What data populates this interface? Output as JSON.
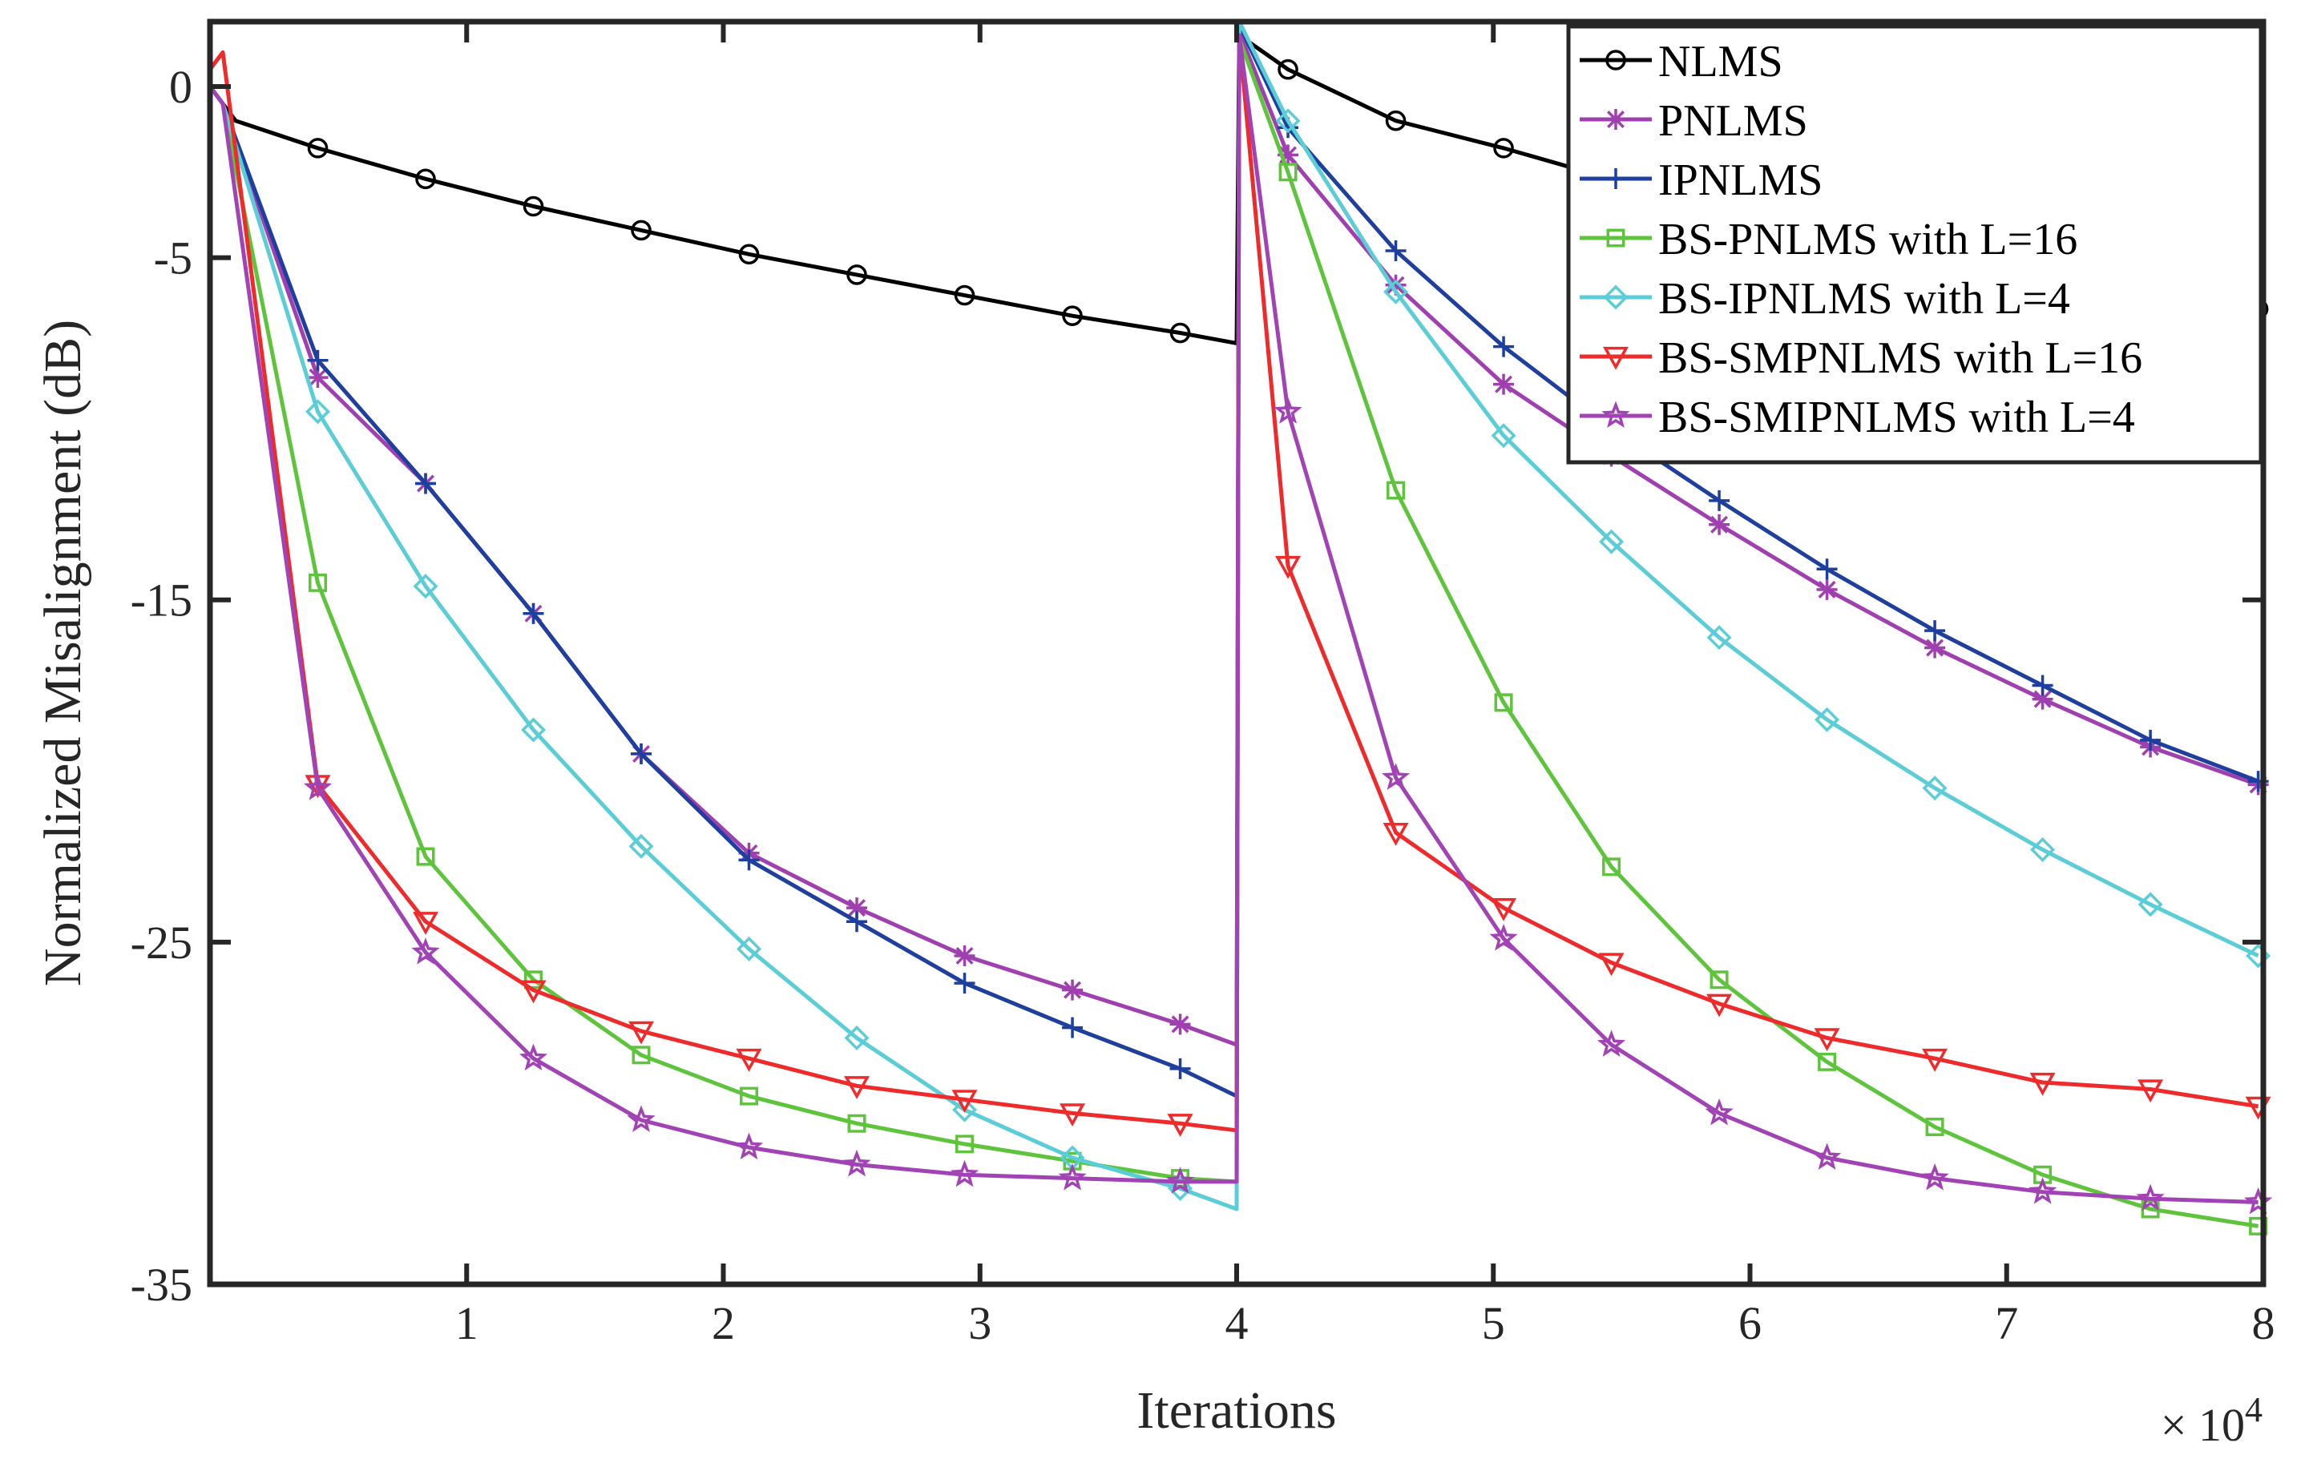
{
  "chart_data": {
    "type": "line",
    "title": "",
    "xlabel": "Iterations",
    "ylabel": "Normalized Misalignment (dB)",
    "x_multiplier": {
      "prefix": "× 10",
      "exponent": "4"
    },
    "xlim": [
      0,
      8
    ],
    "ylim": [
      -35,
      2
    ],
    "xticks": [
      1,
      2,
      3,
      4,
      5,
      6,
      7,
      8
    ],
    "xtick_labels": [
      "1",
      "2",
      "3",
      "4",
      "5",
      "6",
      "7",
      "8"
    ],
    "yticks": [
      0,
      -5,
      -15,
      -25,
      -35
    ],
    "ytick_labels": [
      "0",
      "-5",
      "-15",
      "-25",
      "-35"
    ],
    "legend_position": "top-right",
    "grid": false,
    "series": [
      {
        "name": "NLMS",
        "color": "#000000",
        "marker": "circle",
        "x": [
          0,
          0.1,
          0.42,
          0.84,
          1.26,
          1.68,
          2.1,
          2.52,
          2.94,
          3.36,
          3.78,
          4.0,
          4.01,
          4.2,
          4.62,
          5.04,
          5.46,
          5.88,
          6.3,
          6.72,
          7.14,
          7.56,
          7.98
        ],
        "y": [
          0,
          -1.0,
          -1.8,
          -2.7,
          -3.5,
          -4.2,
          -4.9,
          -5.5,
          -6.1,
          -6.7,
          -7.2,
          -7.5,
          1.5,
          0.5,
          -1.0,
          -1.8,
          -2.7,
          -3.5,
          -4.2,
          -4.8,
          -5.4,
          -5.9,
          -6.5
        ]
      },
      {
        "name": "PNLMS",
        "color": "#A040B0",
        "marker": "asterisk",
        "x": [
          0,
          0.05,
          0.42,
          0.84,
          1.26,
          1.68,
          2.1,
          2.52,
          2.94,
          3.36,
          3.78,
          4.0,
          4.01,
          4.2,
          4.62,
          5.04,
          5.46,
          5.88,
          6.3,
          6.72,
          7.14,
          7.56,
          7.98
        ],
        "y": [
          0,
          -0.5,
          -8.5,
          -11.6,
          -15.4,
          -19.5,
          -22.4,
          -24.0,
          -25.4,
          -26.4,
          -27.4,
          -28.0,
          1.6,
          -2.0,
          -5.8,
          -8.7,
          -10.8,
          -12.8,
          -14.7,
          -16.4,
          -17.9,
          -19.3,
          -20.4
        ]
      },
      {
        "name": "IPNLMS",
        "color": "#1F3F9F",
        "marker": "plus",
        "x": [
          0,
          0.05,
          0.42,
          0.84,
          1.26,
          1.68,
          2.1,
          2.52,
          2.94,
          3.36,
          3.78,
          4.0,
          4.01,
          4.2,
          4.62,
          5.04,
          5.46,
          5.88,
          6.3,
          6.72,
          7.14,
          7.56,
          7.98
        ],
        "y": [
          0,
          -0.5,
          -8.0,
          -11.6,
          -15.4,
          -19.5,
          -22.6,
          -24.4,
          -26.2,
          -27.5,
          -28.7,
          -29.5,
          1.8,
          -1.2,
          -4.8,
          -7.6,
          -10.0,
          -12.1,
          -14.1,
          -15.9,
          -17.5,
          -19.1,
          -20.3
        ]
      },
      {
        "name": "BS-PNLMS with L=16",
        "color": "#5DC43C",
        "marker": "square",
        "x": [
          0,
          0.05,
          0.42,
          0.84,
          1.26,
          1.68,
          2.1,
          2.52,
          2.94,
          3.36,
          3.78,
          4.0,
          4.01,
          4.2,
          4.62,
          5.04,
          5.46,
          5.88,
          6.3,
          6.72,
          7.14,
          7.56,
          7.98
        ],
        "y": [
          0,
          -0.5,
          -14.5,
          -22.5,
          -26.1,
          -28.3,
          -29.5,
          -30.3,
          -30.9,
          -31.4,
          -31.9,
          -32.0,
          1.4,
          -2.5,
          -11.8,
          -18.0,
          -22.8,
          -26.1,
          -28.5,
          -30.4,
          -31.8,
          -32.8,
          -33.3
        ]
      },
      {
        "name": "BS-IPNLMS with L=4",
        "color": "#5ACDD6",
        "marker": "diamond",
        "x": [
          0,
          0.05,
          0.42,
          0.84,
          1.26,
          1.68,
          2.1,
          2.52,
          2.94,
          3.36,
          3.78,
          4.0,
          4.01,
          4.2,
          4.62,
          5.04,
          5.46,
          5.88,
          6.3,
          6.72,
          7.14,
          7.56,
          7.98
        ],
        "y": [
          0,
          -0.5,
          -9.5,
          -14.6,
          -18.8,
          -22.2,
          -25.2,
          -27.8,
          -29.9,
          -31.3,
          -32.2,
          -32.8,
          1.9,
          -1.0,
          -6.0,
          -10.2,
          -13.3,
          -16.1,
          -18.5,
          -20.5,
          -22.3,
          -23.9,
          -25.4
        ]
      },
      {
        "name": "BS-SMPNLMS with L=16",
        "color": "#EE2A2A",
        "marker": "triangle-down",
        "x": [
          0,
          0.05,
          0.42,
          0.84,
          1.26,
          1.68,
          2.1,
          2.52,
          2.94,
          3.36,
          3.78,
          4.0,
          4.01,
          4.2,
          4.62,
          5.04,
          5.46,
          5.88,
          6.3,
          6.72,
          7.14,
          7.56,
          7.98
        ],
        "y": [
          0.5,
          1.0,
          -20.4,
          -24.4,
          -26.4,
          -27.6,
          -28.4,
          -29.2,
          -29.6,
          -30.0,
          -30.3,
          -30.5,
          1.5,
          -14.0,
          -21.8,
          -24.0,
          -25.6,
          -26.8,
          -27.8,
          -28.4,
          -29.1,
          -29.3,
          -29.8
        ]
      },
      {
        "name": "BS-SMIPNLMS with L=4",
        "color": "#A142B5",
        "marker": "star",
        "x": [
          0,
          0.05,
          0.42,
          0.84,
          1.26,
          1.68,
          2.1,
          2.52,
          2.94,
          3.36,
          3.78,
          4.0,
          4.01,
          4.2,
          4.62,
          5.04,
          5.46,
          5.88,
          6.3,
          6.72,
          7.14,
          7.56,
          7.98
        ],
        "y": [
          0,
          -0.5,
          -20.5,
          -25.3,
          -28.4,
          -30.2,
          -31.0,
          -31.5,
          -31.8,
          -31.9,
          -32.0,
          -32.0,
          1.5,
          -9.5,
          -20.2,
          -24.9,
          -28.0,
          -30.0,
          -31.3,
          -31.9,
          -32.3,
          -32.5,
          -32.6
        ]
      }
    ]
  }
}
